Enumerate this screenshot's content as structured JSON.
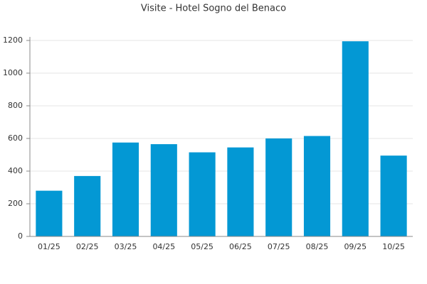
{
  "chart_data": {
    "type": "bar",
    "title": "Visite - Hotel Sogno del Benaco",
    "categories": [
      "01/25",
      "02/25",
      "03/25",
      "04/25",
      "05/25",
      "06/25",
      "07/25",
      "08/25",
      "09/25",
      "10/25"
    ],
    "values": [
      280,
      370,
      575,
      565,
      515,
      545,
      600,
      615,
      1195,
      495
    ],
    "color": "#0398d4",
    "ylim": [
      0,
      1200
    ],
    "yticks": [
      0,
      200,
      400,
      600,
      800,
      1000,
      1200
    ],
    "grid": true
  }
}
